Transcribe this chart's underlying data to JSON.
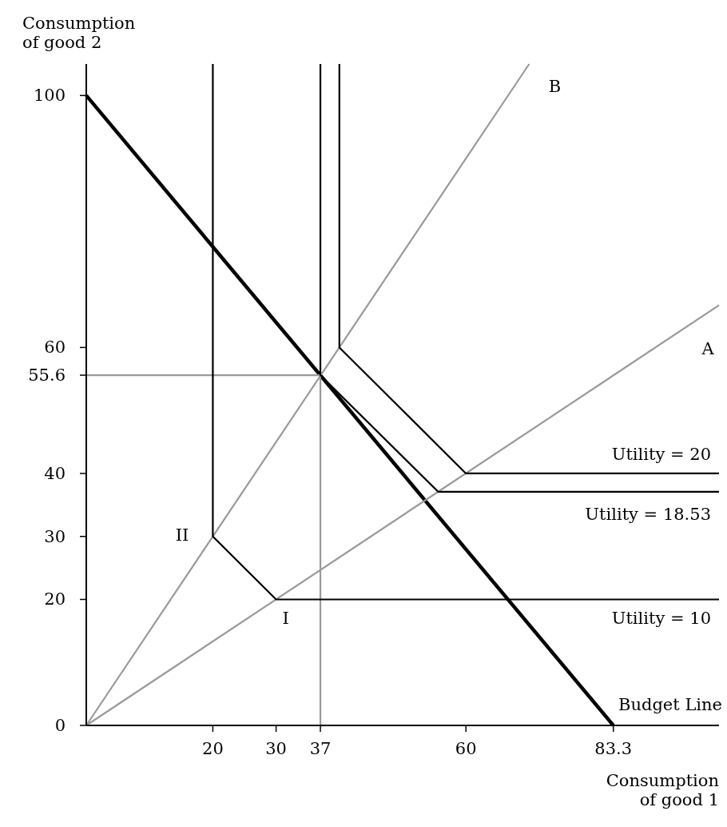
{
  "chart_data": {
    "type": "line",
    "xlabel": "Consumption\nof good 1",
    "ylabel": "Consumption\nof good 2",
    "xlim": [
      0,
      100
    ],
    "ylim": [
      0,
      105
    ],
    "xticks": [
      20,
      30,
      37,
      60,
      83.3
    ],
    "yticks": [
      0,
      20,
      30,
      40,
      55.6,
      60,
      100
    ],
    "grid": false,
    "marker": "none",
    "line_style": "solid",
    "series": [
      {
        "name": "Budget Line",
        "color": "#000000",
        "x": [
          0,
          83.3
        ],
        "values": [
          100,
          0
        ]
      },
      {
        "name": "A",
        "color": "#999999",
        "x": [
          0,
          100
        ],
        "values": [
          0,
          66.7
        ]
      },
      {
        "name": "B",
        "color": "#999999",
        "x": [
          0,
          70
        ],
        "values": [
          0,
          105
        ]
      },
      {
        "color": "#999999",
        "x": [
          0,
          37,
          37
        ],
        "values": [
          55.6,
          55.6,
          0
        ]
      },
      {
        "name": "Utility = 10",
        "color": "#000000",
        "x": [
          20,
          20,
          30,
          100
        ],
        "values": [
          105,
          30,
          20,
          20
        ]
      },
      {
        "name": "Utility = 20",
        "color": "#000000",
        "x": [
          40,
          40,
          60,
          100
        ],
        "values": [
          105,
          60,
          40,
          40
        ]
      },
      {
        "name": "Utility = 18.53",
        "color": "#000000",
        "x": [
          37,
          37,
          55.6,
          100
        ],
        "values": [
          105,
          55.6,
          37.1,
          37.1
        ]
      }
    ],
    "annotations": [
      {
        "text": "II",
        "x": 20,
        "y": 30
      },
      {
        "text": "I",
        "x": 30,
        "y": 20
      }
    ]
  }
}
